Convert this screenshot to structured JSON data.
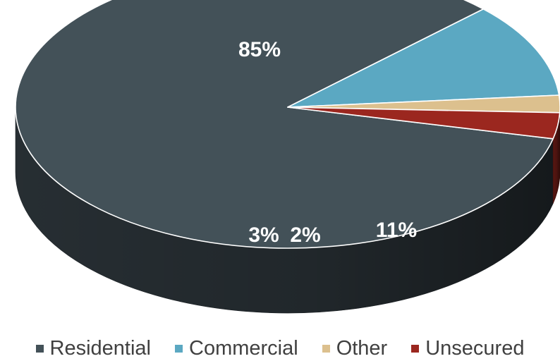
{
  "chart_data": {
    "type": "pie",
    "title": "",
    "legend_position": "bottom",
    "slices": [
      {
        "name": "Residential",
        "value": 85,
        "label": "85%",
        "color": "#435158"
      },
      {
        "name": "Commercial",
        "value": 11,
        "label": "11%",
        "color": "#5ba8c2"
      },
      {
        "name": "Other",
        "value": 2,
        "label": "2%",
        "color": "#dcc08e"
      },
      {
        "name": "Unsecured",
        "value": 3,
        "label": "3%",
        "color": "#9b271f"
      }
    ]
  }
}
